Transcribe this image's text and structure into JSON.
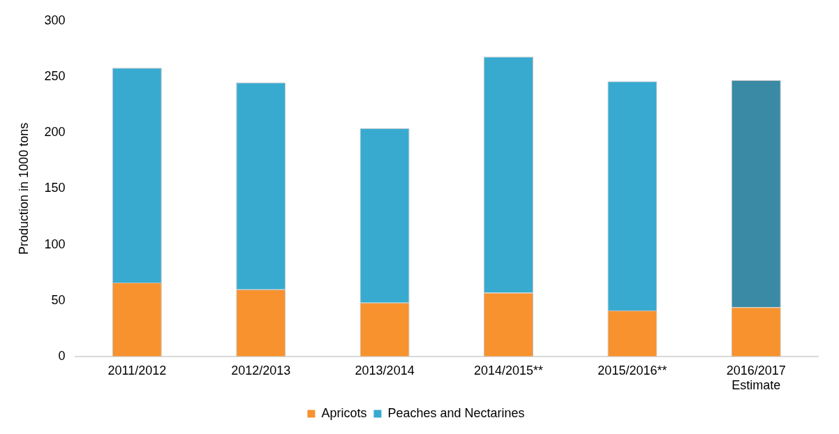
{
  "chart_data": {
    "type": "bar",
    "stacked": true,
    "ylabel": "Production in 1000 tons",
    "categories": [
      "2011/2012",
      "2012/2013",
      "2013/2014",
      "2014/2015**",
      "2015/2016**",
      "2016/2017\nEstimate"
    ],
    "series": [
      {
        "name": "Apricots",
        "color": "#f7922e",
        "values": [
          66,
          60,
          48,
          57,
          41,
          44
        ]
      },
      {
        "name": "Peaches and Nectarines",
        "color": "#38aacf",
        "colors": [
          "#38aacf",
          "#38aacf",
          "#38aacf",
          "#38aacf",
          "#38aacf",
          "#3a8aa5"
        ],
        "values": [
          192,
          185,
          156,
          211,
          205,
          203
        ]
      }
    ],
    "ylim": [
      0,
      300
    ],
    "yticks": [
      0,
      50,
      100,
      150,
      200,
      250,
      300
    ],
    "grid": false,
    "legend": "bottom"
  }
}
